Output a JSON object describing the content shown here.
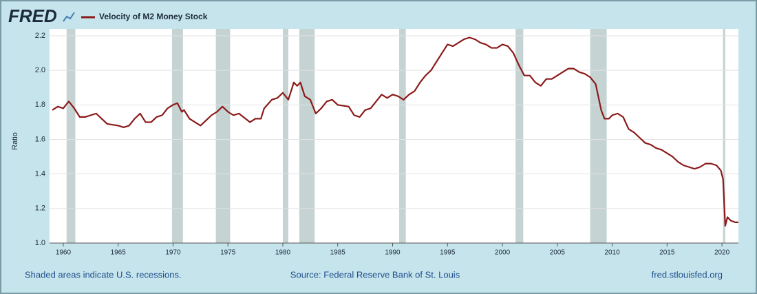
{
  "chart_data": {
    "type": "line",
    "logo": "FRED",
    "y_label": "Ratio",
    "note": "Shaded areas indicate U.S. recessions.",
    "source": "Source: Federal Reserve Bank of St. Louis",
    "site": "fred.stlouisfed.org",
    "xlim": [
      1958.75,
      2021.5
    ],
    "xticks": [
      1960,
      1965,
      1970,
      1975,
      1980,
      1985,
      1990,
      1995,
      2000,
      2005,
      2010,
      2015,
      2020
    ],
    "ylim": [
      1.0,
      2.2
    ],
    "yticks": [
      {
        "value": 1,
        "label": "1.0"
      },
      1.2,
      1.4,
      1.6,
      1.8,
      {
        "value": 2,
        "label": "2.0"
      },
      2.2
    ],
    "grid": true,
    "recession_color": "#c5d3d3",
    "recessions": [
      [
        1960.3,
        1961.1
      ],
      [
        1969.9,
        1970.9
      ],
      [
        1973.9,
        1975.2
      ],
      [
        1980.0,
        1980.5
      ],
      [
        1981.5,
        1982.9
      ],
      [
        1990.6,
        1991.2
      ],
      [
        2001.2,
        2001.9
      ],
      [
        2008.0,
        2009.5
      ],
      [
        2020.1,
        2020.3
      ]
    ],
    "x": [
      1959,
      1959.5,
      1960,
      1960.5,
      1961,
      1961.5,
      1962,
      1963,
      1963.5,
      1964,
      1965,
      1965.5,
      1966,
      1966.5,
      1967,
      1967.5,
      1968,
      1968.5,
      1969,
      1969.5,
      1970,
      1970.4,
      1970.8,
      1971,
      1971.5,
      1972,
      1972.5,
      1973,
      1973.5,
      1974,
      1974.5,
      1975,
      1975.5,
      1976,
      1977,
      1977.5,
      1978,
      1978.3,
      1979,
      1979.5,
      1980,
      1980.5,
      1981,
      1981.3,
      1981.6,
      1982,
      1982.5,
      1983,
      1983.5,
      1984,
      1984.5,
      1985,
      1986,
      1986.5,
      1987,
      1987.5,
      1988,
      1988.5,
      1989,
      1989.5,
      1990,
      1990.5,
      1991,
      1991.5,
      1992,
      1992.5,
      1993,
      1993.5,
      1994,
      1994.5,
      1995,
      1995.5,
      1996,
      1996.5,
      1997,
      1997.5,
      1998,
      1998.5,
      1999,
      1999.5,
      2000,
      2000.5,
      2001,
      2001.5,
      2002,
      2002.5,
      2003,
      2003.5,
      2004,
      2004.5,
      2005,
      2005.5,
      2006,
      2006.5,
      2007,
      2007.5,
      2008,
      2008.5,
      2009,
      2009.3,
      2009.7,
      2010,
      2010.5,
      2011,
      2011.5,
      2012,
      2012.5,
      2013,
      2013.5,
      2014,
      2014.5,
      2015,
      2015.5,
      2016,
      2016.5,
      2017,
      2017.5,
      2018,
      2018.5,
      2019,
      2019.5,
      2019.9,
      2020.1,
      2020.3,
      2020.5,
      2020.8,
      2021.2,
      2021.5
    ],
    "series": [
      {
        "name": "Velocity of M2 Money Stock",
        "color": "#8b1a1a",
        "values": [
          1.77,
          1.79,
          1.78,
          1.82,
          1.78,
          1.73,
          1.73,
          1.75,
          1.72,
          1.69,
          1.68,
          1.67,
          1.68,
          1.72,
          1.75,
          1.7,
          1.7,
          1.73,
          1.74,
          1.78,
          1.8,
          1.81,
          1.76,
          1.77,
          1.72,
          1.7,
          1.68,
          1.71,
          1.74,
          1.76,
          1.79,
          1.76,
          1.74,
          1.75,
          1.7,
          1.72,
          1.72,
          1.78,
          1.83,
          1.84,
          1.87,
          1.83,
          1.93,
          1.91,
          1.93,
          1.85,
          1.83,
          1.75,
          1.78,
          1.82,
          1.83,
          1.8,
          1.79,
          1.74,
          1.73,
          1.77,
          1.78,
          1.82,
          1.86,
          1.84,
          1.86,
          1.85,
          1.83,
          1.86,
          1.88,
          1.93,
          1.97,
          2.0,
          2.05,
          2.1,
          2.15,
          2.14,
          2.16,
          2.18,
          2.19,
          2.18,
          2.16,
          2.15,
          2.13,
          2.13,
          2.15,
          2.14,
          2.1,
          2.03,
          1.97,
          1.97,
          1.93,
          1.91,
          1.95,
          1.95,
          1.97,
          1.99,
          2.01,
          2.01,
          1.99,
          1.98,
          1.96,
          1.92,
          1.77,
          1.72,
          1.72,
          1.74,
          1.75,
          1.73,
          1.66,
          1.64,
          1.61,
          1.58,
          1.57,
          1.55,
          1.54,
          1.52,
          1.5,
          1.47,
          1.45,
          1.44,
          1.43,
          1.44,
          1.46,
          1.46,
          1.45,
          1.42,
          1.37,
          1.1,
          1.15,
          1.13,
          1.12,
          1.12
        ]
      }
    ]
  }
}
